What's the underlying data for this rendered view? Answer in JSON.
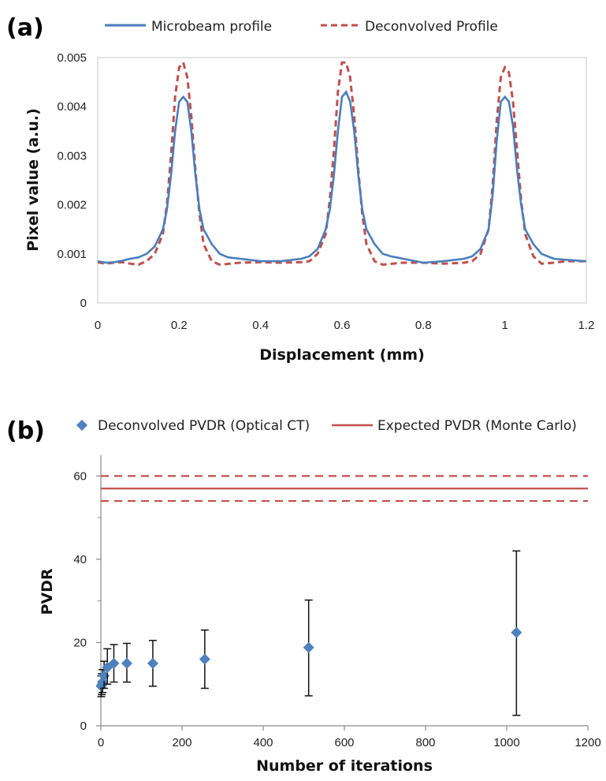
{
  "chart_data": [
    {
      "panel": "(a)",
      "type": "line",
      "xlabel": "Displacement (mm)",
      "ylabel": "Pixel value (a.u.)",
      "xlim": [
        0,
        1.2
      ],
      "ylim": [
        0,
        0.005
      ],
      "xticks": [
        0,
        0.2,
        0.4,
        0.6,
        0.8,
        1,
        1.2
      ],
      "xtick_labels": [
        "0",
        "0.2",
        "0.4",
        "0.6",
        "0.8",
        "1",
        "1.2"
      ],
      "yticks": [
        0,
        0.001,
        0.002,
        0.003,
        0.004,
        0.005
      ],
      "ytick_labels": [
        "0",
        "0.001",
        "0.002",
        "0.003",
        "0.004",
        "0.005"
      ],
      "legend_position": "top",
      "series": [
        {
          "name": "Microbeam profile",
          "color": "#4a7ebb",
          "style": "solid",
          "points": [
            [
              0,
              0.00085
            ],
            [
              0.02,
              0.00082
            ],
            [
              0.04,
              0.00083
            ],
            [
              0.06,
              0.00086
            ],
            [
              0.08,
              0.0009
            ],
            [
              0.1,
              0.00093
            ],
            [
              0.12,
              0.001
            ],
            [
              0.14,
              0.00115
            ],
            [
              0.16,
              0.0015
            ],
            [
              0.17,
              0.0019
            ],
            [
              0.18,
              0.0026
            ],
            [
              0.19,
              0.0035
            ],
            [
              0.2,
              0.0041
            ],
            [
              0.21,
              0.0042
            ],
            [
              0.22,
              0.0041
            ],
            [
              0.23,
              0.0035
            ],
            [
              0.24,
              0.0026
            ],
            [
              0.25,
              0.0019
            ],
            [
              0.26,
              0.0015
            ],
            [
              0.28,
              0.0012
            ],
            [
              0.3,
              0.001
            ],
            [
              0.32,
              0.00093
            ],
            [
              0.35,
              0.0009
            ],
            [
              0.4,
              0.00085
            ],
            [
              0.45,
              0.00085
            ],
            [
              0.5,
              0.0009
            ],
            [
              0.52,
              0.00095
            ],
            [
              0.54,
              0.0011
            ],
            [
              0.56,
              0.0015
            ],
            [
              0.57,
              0.0019
            ],
            [
              0.58,
              0.0026
            ],
            [
              0.59,
              0.0035
            ],
            [
              0.6,
              0.0042
            ],
            [
              0.61,
              0.0043
            ],
            [
              0.62,
              0.0041
            ],
            [
              0.63,
              0.0035
            ],
            [
              0.64,
              0.0026
            ],
            [
              0.65,
              0.0019
            ],
            [
              0.66,
              0.0015
            ],
            [
              0.68,
              0.0012
            ],
            [
              0.7,
              0.001
            ],
            [
              0.72,
              0.00095
            ],
            [
              0.75,
              0.0009
            ],
            [
              0.8,
              0.00082
            ],
            [
              0.85,
              0.00085
            ],
            [
              0.9,
              0.0009
            ],
            [
              0.92,
              0.00095
            ],
            [
              0.94,
              0.0011
            ],
            [
              0.96,
              0.0015
            ],
            [
              0.97,
              0.0022
            ],
            [
              0.98,
              0.0033
            ],
            [
              0.99,
              0.0041
            ],
            [
              1.0,
              0.0042
            ],
            [
              1.01,
              0.0041
            ],
            [
              1.02,
              0.0036
            ],
            [
              1.03,
              0.0027
            ],
            [
              1.04,
              0.002
            ],
            [
              1.05,
              0.0015
            ],
            [
              1.07,
              0.0012
            ],
            [
              1.09,
              0.001
            ],
            [
              1.12,
              0.0009
            ],
            [
              1.15,
              0.00088
            ],
            [
              1.2,
              0.00085
            ]
          ]
        },
        {
          "name": "Deconvolved Profile",
          "color": "#c0504d",
          "style": "dashed",
          "points": [
            [
              0,
              0.00083
            ],
            [
              0.02,
              0.0008
            ],
            [
              0.04,
              0.00082
            ],
            [
              0.06,
              0.00083
            ],
            [
              0.08,
              0.0008
            ],
            [
              0.1,
              0.00078
            ],
            [
              0.12,
              0.00085
            ],
            [
              0.14,
              0.001
            ],
            [
              0.16,
              0.0014
            ],
            [
              0.17,
              0.002
            ],
            [
              0.18,
              0.003
            ],
            [
              0.19,
              0.0042
            ],
            [
              0.2,
              0.0048
            ],
            [
              0.21,
              0.0049
            ],
            [
              0.22,
              0.0046
            ],
            [
              0.23,
              0.0038
            ],
            [
              0.24,
              0.0027
            ],
            [
              0.25,
              0.0018
            ],
            [
              0.26,
              0.0012
            ],
            [
              0.28,
              0.00085
            ],
            [
              0.3,
              0.00078
            ],
            [
              0.35,
              0.00082
            ],
            [
              0.4,
              0.00083
            ],
            [
              0.45,
              0.00082
            ],
            [
              0.5,
              0.00083
            ],
            [
              0.52,
              0.00085
            ],
            [
              0.54,
              0.001
            ],
            [
              0.56,
              0.0014
            ],
            [
              0.57,
              0.0021
            ],
            [
              0.58,
              0.0031
            ],
            [
              0.59,
              0.0043
            ],
            [
              0.6,
              0.0049
            ],
            [
              0.61,
              0.0049
            ],
            [
              0.62,
              0.0046
            ],
            [
              0.63,
              0.0038
            ],
            [
              0.64,
              0.0027
            ],
            [
              0.65,
              0.0018
            ],
            [
              0.66,
              0.0012
            ],
            [
              0.68,
              0.00085
            ],
            [
              0.7,
              0.00078
            ],
            [
              0.75,
              0.00082
            ],
            [
              0.8,
              0.00082
            ],
            [
              0.85,
              0.0008
            ],
            [
              0.9,
              0.00082
            ],
            [
              0.92,
              0.00085
            ],
            [
              0.94,
              0.001
            ],
            [
              0.96,
              0.0015
            ],
            [
              0.97,
              0.0024
            ],
            [
              0.98,
              0.0037
            ],
            [
              0.99,
              0.0046
            ],
            [
              1.0,
              0.0048
            ],
            [
              1.01,
              0.0047
            ],
            [
              1.02,
              0.0041
            ],
            [
              1.03,
              0.0031
            ],
            [
              1.04,
              0.0021
            ],
            [
              1.05,
              0.0014
            ],
            [
              1.07,
              0.00095
            ],
            [
              1.09,
              0.0008
            ],
            [
              1.12,
              0.00082
            ],
            [
              1.15,
              0.00085
            ],
            [
              1.2,
              0.00085
            ]
          ]
        }
      ]
    },
    {
      "panel": "(b)",
      "type": "scatter",
      "xlabel": "Number of iterations",
      "ylabel": "PVDR",
      "xlim": [
        0,
        1200
      ],
      "ylim": [
        0,
        65
      ],
      "xticks": [
        0,
        200,
        400,
        600,
        800,
        1000,
        1200
      ],
      "xtick_labels": [
        "0",
        "200",
        "400",
        "600",
        "800",
        "1000",
        "1200"
      ],
      "yticks": [
        0,
        20,
        40,
        60
      ],
      "ytick_labels": [
        "0",
        "20",
        "40",
        "60"
      ],
      "legend_position": "top",
      "series": [
        {
          "name": "Deconvolved PVDR (Optical CT)",
          "color": "#4f81bd",
          "marker": "diamond",
          "points": [
            {
              "x": 1,
              "y": 9.5,
              "err_low": 7.0,
              "err_high": 12.0
            },
            {
              "x": 2,
              "y": 9.8,
              "err_low": 7.5,
              "err_high": 12.5
            },
            {
              "x": 4,
              "y": 10.5,
              "err_low": 8.0,
              "err_high": 13.5
            },
            {
              "x": 8,
              "y": 12.0,
              "err_low": 9.0,
              "err_high": 15.5
            },
            {
              "x": 16,
              "y": 14.0,
              "err_low": 10.0,
              "err_high": 18.5
            },
            {
              "x": 32,
              "y": 15.0,
              "err_low": 10.5,
              "err_high": 19.5
            },
            {
              "x": 64,
              "y": 15.0,
              "err_low": 10.5,
              "err_high": 19.8
            },
            {
              "x": 128,
              "y": 15.0,
              "err_low": 9.5,
              "err_high": 20.5
            },
            {
              "x": 256,
              "y": 16.0,
              "err_low": 9.0,
              "err_high": 23.0
            },
            {
              "x": 512,
              "y": 18.8,
              "err_low": 7.2,
              "err_high": 30.2
            },
            {
              "x": 1024,
              "y": 22.4,
              "err_low": 2.5,
              "err_high": 42.0
            }
          ]
        },
        {
          "name": "Expected PVDR (Monte Carlo)",
          "color": "#c0504d",
          "style": "solid",
          "value": 57,
          "band": [
            54,
            60
          ]
        }
      ]
    }
  ]
}
